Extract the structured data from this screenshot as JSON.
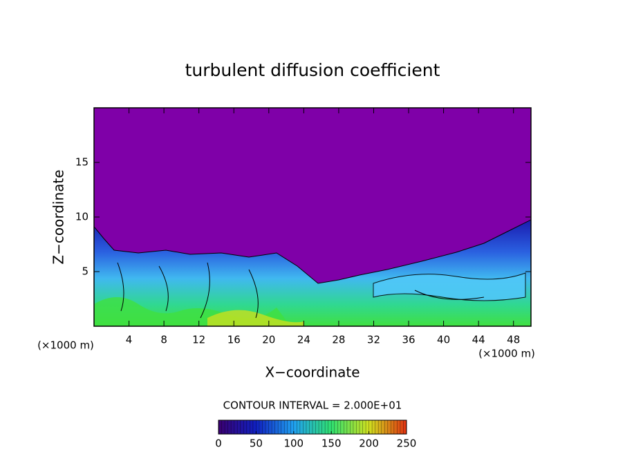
{
  "chart_data": {
    "type": "contour",
    "title": "turbulent diffusion coefficient",
    "xlabel": "X−coordinate",
    "ylabel": "Z−coordinate",
    "x_unit_label": "(×1000 m)",
    "y_unit_label": "(×1000 m)",
    "xlim": [
      0,
      50
    ],
    "xticks": [
      4,
      8,
      12,
      16,
      20,
      24,
      28,
      32,
      36,
      40,
      44,
      48
    ],
    "ylim": [
      0,
      20
    ],
    "yticks": [
      5,
      10,
      15
    ],
    "background_color": "#7f00a8",
    "contour_interval_text": "CONTOUR INTERVAL = 2.000E+01",
    "colorbar": {
      "lim": [
        0,
        250
      ],
      "ticks": [
        0,
        50,
        100,
        150,
        200,
        250
      ],
      "colors": [
        "#3a0070",
        "#1020c0",
        "#20a0f0",
        "#30e070",
        "#d0e020",
        "#e03010"
      ]
    }
  }
}
